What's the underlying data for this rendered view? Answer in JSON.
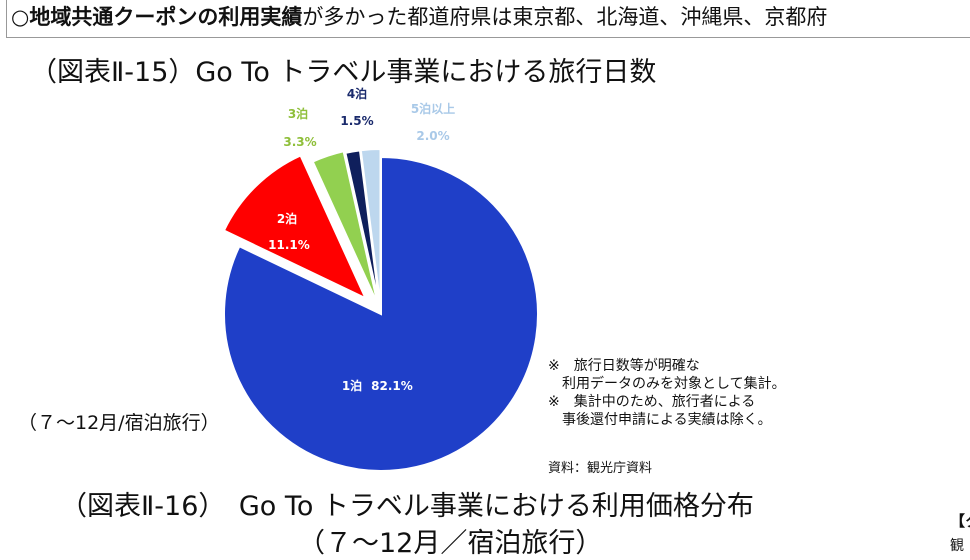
{
  "banner": {
    "bold": "○地域共通クーポンの利用実績",
    "rest": "が多かった都道府県は東京都、北海道、沖縄県、京都府"
  },
  "title_15": "（図表Ⅱ-15）Go To トラベル事業における旅行日数",
  "subtitle_15": "（７～12月/宿泊旅行）",
  "notes": [
    "※　旅行日数等が明確な",
    "　利用データのみを対象として集計。",
    "※　集計中のため、旅行者による",
    "　事後還付申請による実績は除く。"
  ],
  "source": "資料：観光庁資料",
  "title_16": "（図表Ⅱ-16）　Go To トラベル事業における利用価格分布",
  "subtitle_16": "（７～12月／宿泊旅行）",
  "edge_right": [
    "（",
    "【ク",
    "観"
  ],
  "chart_data": {
    "type": "pie",
    "title": "（図表Ⅱ-15）Go To トラベル事業における旅行日数",
    "slices": [
      {
        "label": "1泊",
        "value": 82.1,
        "display": "82.1%",
        "color": "#1f3fc8"
      },
      {
        "label": "2泊",
        "value": 11.1,
        "display": "11.1%",
        "color": "#ff0000"
      },
      {
        "label": "3泊",
        "value": 3.3,
        "display": "3.3%",
        "color": "#92d050"
      },
      {
        "label": "4泊",
        "value": 1.5,
        "display": "1.5%",
        "color": "#0f1f5c"
      },
      {
        "label": "5泊以上",
        "value": 2.0,
        "display": "2.0%",
        "color": "#bdd7ee"
      }
    ]
  }
}
